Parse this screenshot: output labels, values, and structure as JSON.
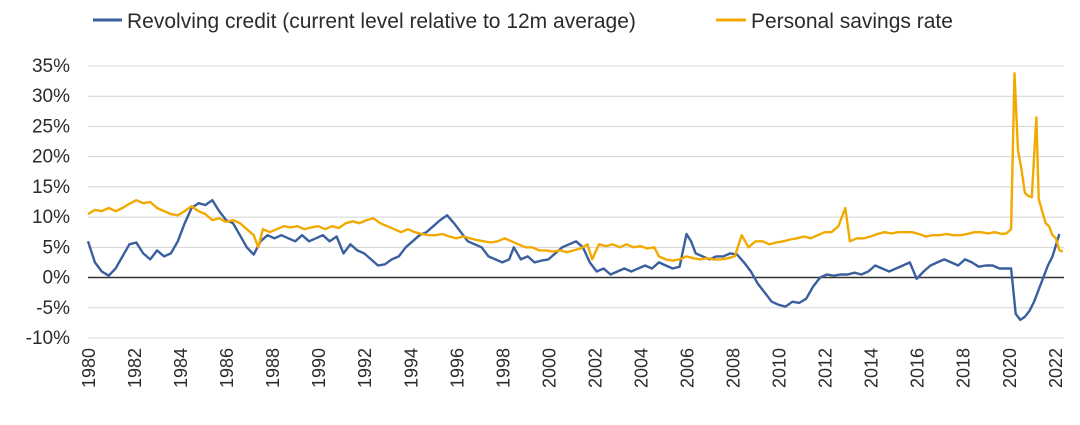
{
  "chart_data": {
    "type": "line",
    "title": "",
    "xlabel": "",
    "ylabel": "",
    "ylim": [
      -10,
      35
    ],
    "xlim": [
      1980,
      2022.4
    ],
    "grid": "horizontal",
    "legend_position": "top",
    "yticks": [
      "35%",
      "30%",
      "25%",
      "20%",
      "15%",
      "10%",
      "5%",
      "0%",
      "-5%",
      "-10%"
    ],
    "ytick_values": [
      35,
      30,
      25,
      20,
      15,
      10,
      5,
      0,
      -5,
      -10
    ],
    "xticks": [
      "1980",
      "1982",
      "1984",
      "1986",
      "1988",
      "1990",
      "1992",
      "1994",
      "1996",
      "1998",
      "2000",
      "2002",
      "2004",
      "2006",
      "2008",
      "2010",
      "2012",
      "2014",
      "2016",
      "2018",
      "2020",
      "2022"
    ],
    "xtick_values": [
      1980,
      1982,
      1984,
      1986,
      1988,
      1990,
      1992,
      1994,
      1996,
      1998,
      2000,
      2002,
      2004,
      2006,
      2008,
      2010,
      2012,
      2014,
      2016,
      2018,
      2020,
      2022
    ],
    "series": [
      {
        "name": "Revolving credit (current level relative to 12m average)",
        "color": "#3a5f9e",
        "points": [
          [
            1980.0,
            6
          ],
          [
            1980.3,
            2.5
          ],
          [
            1980.6,
            1
          ],
          [
            1980.9,
            0.3
          ],
          [
            1981.2,
            1.5
          ],
          [
            1981.5,
            3.5
          ],
          [
            1981.8,
            5.5
          ],
          [
            1982.1,
            5.8
          ],
          [
            1982.4,
            4
          ],
          [
            1982.7,
            3
          ],
          [
            1983.0,
            4.5
          ],
          [
            1983.3,
            3.5
          ],
          [
            1983.6,
            4
          ],
          [
            1983.9,
            6
          ],
          [
            1984.2,
            9
          ],
          [
            1984.5,
            11.5
          ],
          [
            1984.8,
            12.3
          ],
          [
            1985.1,
            12
          ],
          [
            1985.4,
            12.8
          ],
          [
            1985.7,
            11
          ],
          [
            1986.0,
            9.5
          ],
          [
            1986.3,
            9
          ],
          [
            1986.6,
            7
          ],
          [
            1986.9,
            5
          ],
          [
            1987.2,
            3.8
          ],
          [
            1987.5,
            6
          ],
          [
            1987.8,
            7
          ],
          [
            1988.1,
            6.5
          ],
          [
            1988.4,
            7
          ],
          [
            1988.7,
            6.5
          ],
          [
            1989.0,
            6
          ],
          [
            1989.3,
            7
          ],
          [
            1989.6,
            6
          ],
          [
            1989.9,
            6.5
          ],
          [
            1990.2,
            7
          ],
          [
            1990.5,
            6
          ],
          [
            1990.8,
            6.8
          ],
          [
            1991.1,
            4
          ],
          [
            1991.4,
            5.5
          ],
          [
            1991.7,
            4.5
          ],
          [
            1992.0,
            4
          ],
          [
            1992.3,
            3
          ],
          [
            1992.6,
            2
          ],
          [
            1992.9,
            2.2
          ],
          [
            1993.2,
            3
          ],
          [
            1993.5,
            3.5
          ],
          [
            1993.8,
            5
          ],
          [
            1994.1,
            6
          ],
          [
            1994.4,
            7
          ],
          [
            1994.7,
            7.5
          ],
          [
            1995.0,
            8.5
          ],
          [
            1995.3,
            9.5
          ],
          [
            1995.6,
            10.3
          ],
          [
            1995.9,
            9
          ],
          [
            1996.2,
            7.5
          ],
          [
            1996.5,
            6
          ],
          [
            1996.8,
            5.5
          ],
          [
            1997.1,
            5
          ],
          [
            1997.4,
            3.5
          ],
          [
            1997.7,
            3
          ],
          [
            1998.0,
            2.5
          ],
          [
            1998.3,
            3
          ],
          [
            1998.5,
            5
          ],
          [
            1998.8,
            3
          ],
          [
            1999.1,
            3.5
          ],
          [
            1999.4,
            2.5
          ],
          [
            1999.7,
            2.8
          ],
          [
            2000.0,
            3
          ],
          [
            2000.3,
            4
          ],
          [
            2000.6,
            5
          ],
          [
            2000.9,
            5.5
          ],
          [
            2001.2,
            6
          ],
          [
            2001.5,
            5
          ],
          [
            2001.8,
            2.5
          ],
          [
            2002.1,
            1
          ],
          [
            2002.4,
            1.5
          ],
          [
            2002.7,
            0.5
          ],
          [
            2003.0,
            1
          ],
          [
            2003.3,
            1.5
          ],
          [
            2003.6,
            1
          ],
          [
            2003.9,
            1.5
          ],
          [
            2004.2,
            2
          ],
          [
            2004.5,
            1.5
          ],
          [
            2004.8,
            2.5
          ],
          [
            2005.1,
            2
          ],
          [
            2005.4,
            1.5
          ],
          [
            2005.7,
            1.8
          ],
          [
            2006.0,
            7.2
          ],
          [
            2006.2,
            6
          ],
          [
            2006.4,
            4
          ],
          [
            2006.7,
            3.5
          ],
          [
            2007.0,
            3
          ],
          [
            2007.3,
            3.5
          ],
          [
            2007.6,
            3.5
          ],
          [
            2007.9,
            4
          ],
          [
            2008.2,
            3.8
          ],
          [
            2008.5,
            2.5
          ],
          [
            2008.8,
            1
          ],
          [
            2009.1,
            -1
          ],
          [
            2009.4,
            -2.5
          ],
          [
            2009.7,
            -4
          ],
          [
            2010.0,
            -4.5
          ],
          [
            2010.3,
            -4.8
          ],
          [
            2010.6,
            -4
          ],
          [
            2010.9,
            -4.2
          ],
          [
            2011.2,
            -3.5
          ],
          [
            2011.5,
            -1.5
          ],
          [
            2011.8,
            0
          ],
          [
            2012.1,
            0.5
          ],
          [
            2012.4,
            0.3
          ],
          [
            2012.7,
            0.5
          ],
          [
            2013.0,
            0.5
          ],
          [
            2013.3,
            0.8
          ],
          [
            2013.6,
            0.5
          ],
          [
            2013.9,
            1
          ],
          [
            2014.2,
            2
          ],
          [
            2014.5,
            1.5
          ],
          [
            2014.8,
            1
          ],
          [
            2015.1,
            1.5
          ],
          [
            2015.4,
            2
          ],
          [
            2015.7,
            2.5
          ],
          [
            2016.0,
            -0.2
          ],
          [
            2016.3,
            1
          ],
          [
            2016.6,
            2
          ],
          [
            2016.9,
            2.5
          ],
          [
            2017.2,
            3
          ],
          [
            2017.5,
            2.5
          ],
          [
            2017.8,
            2
          ],
          [
            2018.1,
            3
          ],
          [
            2018.4,
            2.5
          ],
          [
            2018.7,
            1.8
          ],
          [
            2019.0,
            2
          ],
          [
            2019.3,
            2
          ],
          [
            2019.6,
            1.5
          ],
          [
            2019.9,
            1.5
          ],
          [
            2020.1,
            1.5
          ],
          [
            2020.3,
            -6
          ],
          [
            2020.5,
            -7
          ],
          [
            2020.7,
            -6.5
          ],
          [
            2020.9,
            -5.5
          ],
          [
            2021.1,
            -4
          ],
          [
            2021.3,
            -2
          ],
          [
            2021.5,
            0
          ],
          [
            2021.7,
            2
          ],
          [
            2021.9,
            3.5
          ],
          [
            2022.1,
            6
          ],
          [
            2022.2,
            7.2
          ]
        ]
      },
      {
        "name": "Personal savings rate",
        "color": "#f2a900",
        "points": [
          [
            1980.0,
            10.5
          ],
          [
            1980.3,
            11.2
          ],
          [
            1980.6,
            11
          ],
          [
            1980.9,
            11.5
          ],
          [
            1981.2,
            11
          ],
          [
            1981.5,
            11.5
          ],
          [
            1981.8,
            12.2
          ],
          [
            1982.1,
            12.8
          ],
          [
            1982.4,
            12.3
          ],
          [
            1982.7,
            12.5
          ],
          [
            1983.0,
            11.5
          ],
          [
            1983.3,
            11
          ],
          [
            1983.6,
            10.5
          ],
          [
            1983.9,
            10.3
          ],
          [
            1984.2,
            11
          ],
          [
            1984.5,
            11.8
          ],
          [
            1984.8,
            11
          ],
          [
            1985.1,
            10.5
          ],
          [
            1985.4,
            9.5
          ],
          [
            1985.7,
            9.8
          ],
          [
            1986.0,
            9.2
          ],
          [
            1986.3,
            9.5
          ],
          [
            1986.6,
            9
          ],
          [
            1986.9,
            8
          ],
          [
            1987.2,
            7
          ],
          [
            1987.4,
            5
          ],
          [
            1987.6,
            8
          ],
          [
            1987.9,
            7.5
          ],
          [
            1988.2,
            8
          ],
          [
            1988.5,
            8.5
          ],
          [
            1988.8,
            8.3
          ],
          [
            1989.1,
            8.5
          ],
          [
            1989.4,
            8
          ],
          [
            1989.7,
            8.3
          ],
          [
            1990.0,
            8.5
          ],
          [
            1990.3,
            8
          ],
          [
            1990.6,
            8.5
          ],
          [
            1990.9,
            8.2
          ],
          [
            1991.2,
            9
          ],
          [
            1991.5,
            9.3
          ],
          [
            1991.8,
            9
          ],
          [
            1992.1,
            9.5
          ],
          [
            1992.4,
            9.8
          ],
          [
            1992.7,
            9
          ],
          [
            1993.0,
            8.5
          ],
          [
            1993.3,
            8
          ],
          [
            1993.6,
            7.5
          ],
          [
            1993.9,
            8
          ],
          [
            1994.2,
            7.5
          ],
          [
            1994.5,
            7.2
          ],
          [
            1994.8,
            7
          ],
          [
            1995.1,
            7
          ],
          [
            1995.4,
            7.2
          ],
          [
            1995.7,
            6.8
          ],
          [
            1996.0,
            6.5
          ],
          [
            1996.3,
            6.8
          ],
          [
            1996.6,
            6.5
          ],
          [
            1996.9,
            6.2
          ],
          [
            1997.2,
            6
          ],
          [
            1997.5,
            5.8
          ],
          [
            1997.8,
            6
          ],
          [
            1998.1,
            6.5
          ],
          [
            1998.4,
            6
          ],
          [
            1998.7,
            5.5
          ],
          [
            1999.0,
            5
          ],
          [
            1999.3,
            5
          ],
          [
            1999.6,
            4.5
          ],
          [
            1999.9,
            4.5
          ],
          [
            2000.2,
            4.3
          ],
          [
            2000.5,
            4.5
          ],
          [
            2000.8,
            4.2
          ],
          [
            2001.1,
            4.5
          ],
          [
            2001.4,
            4.8
          ],
          [
            2001.7,
            5.5
          ],
          [
            2001.9,
            3
          ],
          [
            2002.2,
            5.5
          ],
          [
            2002.5,
            5.2
          ],
          [
            2002.8,
            5.5
          ],
          [
            2003.1,
            5
          ],
          [
            2003.4,
            5.5
          ],
          [
            2003.7,
            5
          ],
          [
            2004.0,
            5.2
          ],
          [
            2004.3,
            4.8
          ],
          [
            2004.6,
            5
          ],
          [
            2004.8,
            3.5
          ],
          [
            2005.1,
            3
          ],
          [
            2005.4,
            2.8
          ],
          [
            2005.7,
            3
          ],
          [
            2006.0,
            3.5
          ],
          [
            2006.3,
            3.2
          ],
          [
            2006.6,
            3
          ],
          [
            2006.9,
            3.2
          ],
          [
            2007.2,
            3
          ],
          [
            2007.5,
            3
          ],
          [
            2007.8,
            3.2
          ],
          [
            2008.1,
            3.5
          ],
          [
            2008.4,
            7
          ],
          [
            2008.7,
            5
          ],
          [
            2009.0,
            6
          ],
          [
            2009.3,
            6
          ],
          [
            2009.6,
            5.5
          ],
          [
            2009.9,
            5.8
          ],
          [
            2010.2,
            6
          ],
          [
            2010.5,
            6.3
          ],
          [
            2010.8,
            6.5
          ],
          [
            2011.1,
            6.8
          ],
          [
            2011.4,
            6.5
          ],
          [
            2011.7,
            7
          ],
          [
            2012.0,
            7.5
          ],
          [
            2012.3,
            7.5
          ],
          [
            2012.6,
            8.5
          ],
          [
            2012.9,
            11.5
          ],
          [
            2013.1,
            6
          ],
          [
            2013.4,
            6.5
          ],
          [
            2013.7,
            6.5
          ],
          [
            2014.0,
            6.8
          ],
          [
            2014.3,
            7.2
          ],
          [
            2014.6,
            7.5
          ],
          [
            2014.9,
            7.3
          ],
          [
            2015.2,
            7.5
          ],
          [
            2015.5,
            7.5
          ],
          [
            2015.8,
            7.5
          ],
          [
            2016.1,
            7.2
          ],
          [
            2016.4,
            6.8
          ],
          [
            2016.7,
            7
          ],
          [
            2017.0,
            7
          ],
          [
            2017.3,
            7.2
          ],
          [
            2017.6,
            7
          ],
          [
            2017.9,
            7
          ],
          [
            2018.2,
            7.2
          ],
          [
            2018.5,
            7.5
          ],
          [
            2018.8,
            7.5
          ],
          [
            2019.1,
            7.3
          ],
          [
            2019.4,
            7.5
          ],
          [
            2019.7,
            7.2
          ],
          [
            2019.9,
            7.3
          ],
          [
            2020.1,
            8
          ],
          [
            2020.25,
            33.8
          ],
          [
            2020.4,
            21
          ],
          [
            2020.55,
            18
          ],
          [
            2020.7,
            14
          ],
          [
            2020.85,
            13.5
          ],
          [
            2021.0,
            13.3
          ],
          [
            2021.1,
            20
          ],
          [
            2021.2,
            26.5
          ],
          [
            2021.3,
            13
          ],
          [
            2021.45,
            11
          ],
          [
            2021.6,
            9
          ],
          [
            2021.75,
            8.5
          ],
          [
            2021.9,
            7
          ],
          [
            2022.05,
            6.5
          ],
          [
            2022.2,
            4.5
          ],
          [
            2022.35,
            4.3
          ]
        ]
      }
    ]
  }
}
